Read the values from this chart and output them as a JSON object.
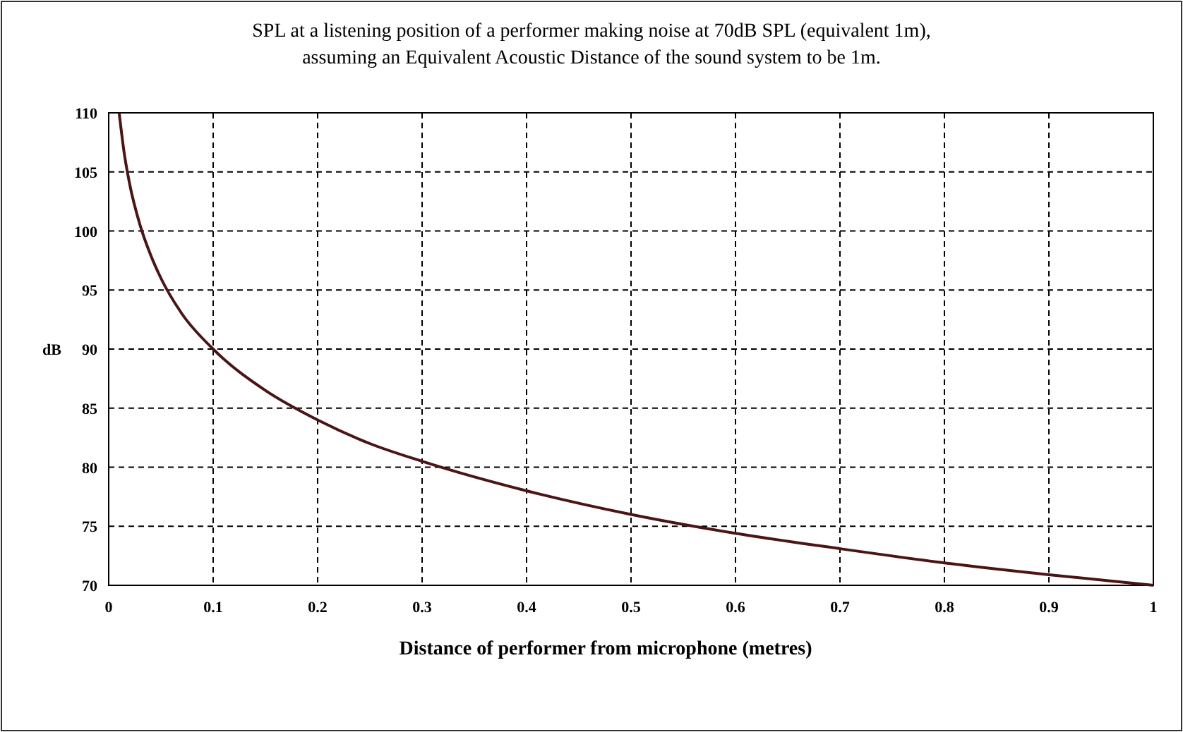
{
  "chart_data": {
    "type": "line",
    "title": "SPL at a listening position of a performer making noise at 70dB SPL (equivalent 1m),\nassuming an Equivalent Acoustic Distance of the sound system to be 1m.",
    "xlabel": "Distance of performer from microphone (metres)",
    "ylabel": "dB",
    "series": [
      {
        "color": "#4a1515",
        "x": [
          0.01,
          0.015,
          0.02,
          0.03,
          0.04,
          0.05,
          0.07,
          0.1,
          0.15,
          0.2,
          0.25,
          0.3,
          0.4,
          0.5,
          0.6,
          0.7,
          0.8,
          0.9,
          1
        ],
        "values": [
          110,
          106.5,
          104,
          100.5,
          98,
          96,
          93,
          90,
          86.5,
          84,
          82,
          80.5,
          78,
          76,
          74.4,
          73.1,
          71.9,
          70.9,
          70
        ]
      }
    ],
    "xlim": [
      0,
      1
    ],
    "xticks": [
      0,
      0.1,
      0.2,
      0.3,
      0.4,
      0.5,
      0.6,
      0.7,
      0.8,
      0.9,
      1
    ],
    "ylim": [
      70,
      110
    ],
    "yticks": [
      70,
      75,
      80,
      85,
      90,
      95,
      100,
      105,
      110
    ],
    "grid": true,
    "line_style": "solid"
  }
}
